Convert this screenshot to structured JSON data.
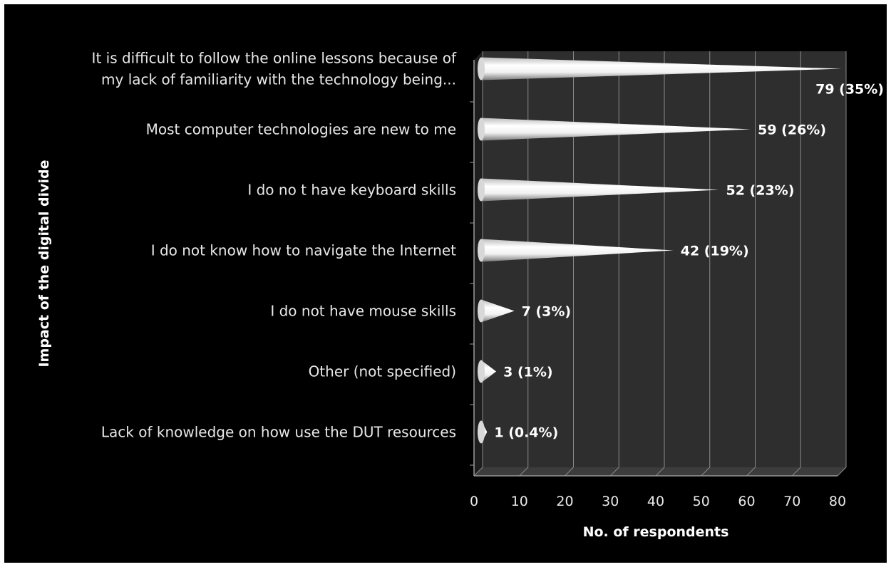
{
  "chart_data": {
    "type": "bar",
    "title": "",
    "xlabel": "No. of respondents",
    "ylabel": "Impact of the digital divide",
    "xlim": [
      0,
      80
    ],
    "x_ticks": [
      "0",
      "10",
      "20",
      "30",
      "40",
      "50",
      "60",
      "70",
      "80"
    ],
    "grid": true,
    "categories": [
      [
        "It is difficult to follow the online lessons because of",
        "my lack of familiarity with the technology being..."
      ],
      [
        "Most computer technologies are new to me"
      ],
      [
        "I do no t have keyboard skills"
      ],
      [
        "I do not know how to navigate the Internet"
      ],
      [
        "I do not have mouse skills"
      ],
      [
        "Other (not specified)"
      ],
      [
        "Lack of knowledge on how use the DUT resources"
      ]
    ],
    "values": [
      79,
      59,
      52,
      42,
      7,
      3,
      1
    ],
    "data_labels": [
      "79 (35%)",
      "59 (26%)",
      "52 (23%)",
      "42 (19%)",
      "7 (3%)",
      "3 (1%)",
      "1 (0.4%)"
    ],
    "colors": {
      "background": "#000000",
      "wall": "#2e2e2e",
      "floor": "#3c3c3c",
      "gridline": "#8a8a8a",
      "bar": "#ffffff",
      "text": "#e8e8e8"
    }
  }
}
